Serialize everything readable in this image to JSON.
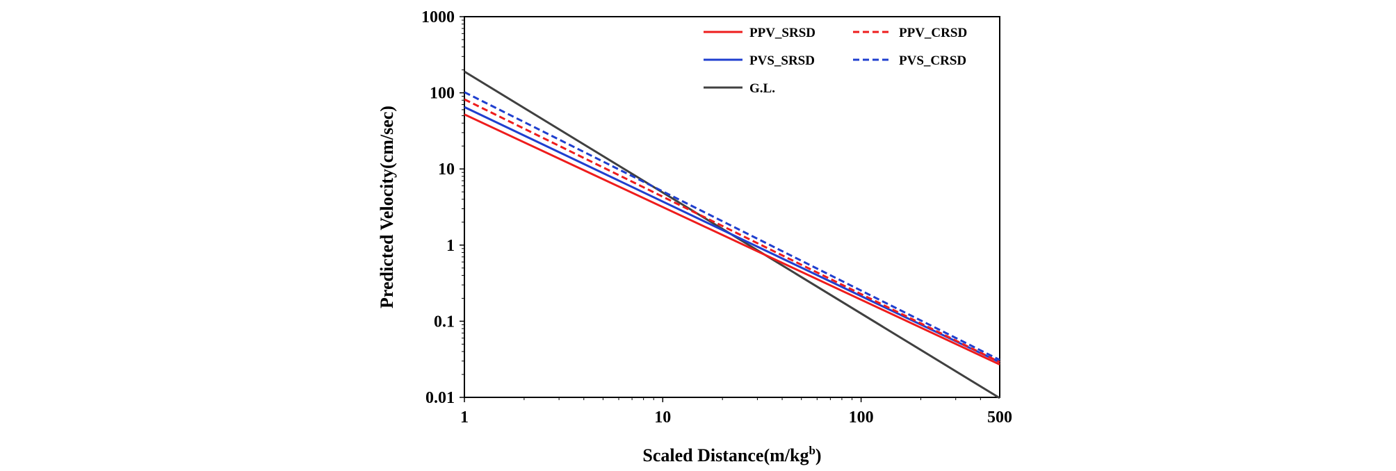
{
  "chart_data": {
    "type": "line",
    "title": "",
    "xlabel": "Scaled Distance(m/kg",
    "xlabel_sup": "b",
    "xlabel_suffix": ")",
    "ylabel": "Predicted Velocity(cm/sec)",
    "x_scale": "log",
    "y_scale": "log",
    "xlim": [
      1,
      500
    ],
    "ylim": [
      0.01,
      1000
    ],
    "x_ticks": [
      {
        "value": 1,
        "label": "1"
      },
      {
        "value": 10,
        "label": "10"
      },
      {
        "value": 100,
        "label": "100"
      },
      {
        "value": 500,
        "label": "500"
      }
    ],
    "y_ticks": [
      {
        "value": 0.01,
        "label": "0.01"
      },
      {
        "value": 0.1,
        "label": "0.1"
      },
      {
        "value": 1,
        "label": "1"
      },
      {
        "value": 10,
        "label": "10"
      },
      {
        "value": 100,
        "label": "100"
      },
      {
        "value": 1000,
        "label": "1000"
      }
    ],
    "grid": false,
    "legend_position": "top-right",
    "series": [
      {
        "name": "PPV_SRSD",
        "color": "#ee1c1c",
        "dash": "solid",
        "x": [
          1,
          500
        ],
        "y": [
          52,
          0.027
        ]
      },
      {
        "name": "PPV_CRSD",
        "color": "#ee1c1c",
        "dash": "dashed",
        "x": [
          1,
          500
        ],
        "y": [
          82,
          0.029
        ]
      },
      {
        "name": "PVS_SRSD",
        "color": "#1f3fcf",
        "dash": "solid",
        "x": [
          1,
          500
        ],
        "y": [
          65,
          0.029
        ]
      },
      {
        "name": "PVS_CRSD",
        "color": "#1f3fcf",
        "dash": "dashed",
        "x": [
          1,
          500
        ],
        "y": [
          102,
          0.031
        ]
      },
      {
        "name": "G.L.",
        "color": "#404040",
        "dash": "solid",
        "x": [
          1,
          500
        ],
        "y": [
          190,
          0.0098
        ]
      }
    ]
  }
}
